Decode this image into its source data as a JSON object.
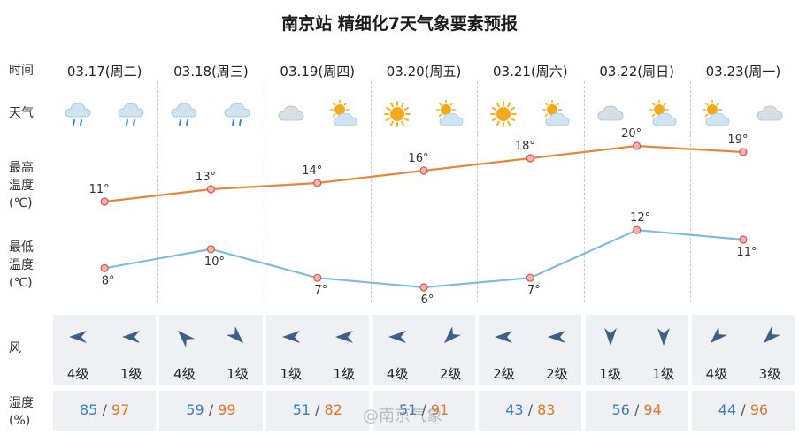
{
  "title": "南京站 精细化7天气象要素预报",
  "row_labels": {
    "time": "时间",
    "weather": "天气",
    "max_temp": [
      "最高",
      "温度",
      "(℃)"
    ],
    "min_temp": [
      "最低",
      "温度",
      "(℃)"
    ],
    "wind": "风",
    "humidity": [
      "湿度",
      "(%)"
    ]
  },
  "days": [
    {
      "date": "03.17(周二)",
      "weather": [
        "light-rain-icon",
        "light-rain-icon"
      ],
      "wind_dir": [
        "west",
        "west"
      ],
      "wind_level": [
        "4级",
        "1级"
      ],
      "humidity_low": "85",
      "humidity_high": "97"
    },
    {
      "date": "03.18(周三)",
      "weather": [
        "light-rain-icon",
        "light-rain-icon"
      ],
      "wind_dir": [
        "north-west",
        "south-east"
      ],
      "wind_level": [
        "4级",
        "1级"
      ],
      "humidity_low": "59",
      "humidity_high": "99"
    },
    {
      "date": "03.19(周四)",
      "weather": [
        "cloudy-icon",
        "partly-cloudy-icon"
      ],
      "wind_dir": [
        "west",
        "west"
      ],
      "wind_level": [
        "1级",
        "1级"
      ],
      "humidity_low": "51",
      "humidity_high": "82"
    },
    {
      "date": "03.20(周五)",
      "weather": [
        "sunny-icon",
        "partly-cloudy-icon"
      ],
      "wind_dir": [
        "west",
        "south-west"
      ],
      "wind_level": [
        "4级",
        "2级"
      ],
      "humidity_low": "51",
      "humidity_high": "91"
    },
    {
      "date": "03.21(周六)",
      "weather": [
        "sunny-icon",
        "partly-cloudy-icon"
      ],
      "wind_dir": [
        "west",
        "west"
      ],
      "wind_level": [
        "2级",
        "2级"
      ],
      "humidity_low": "43",
      "humidity_high": "83"
    },
    {
      "date": "03.22(周日)",
      "weather": [
        "cloudy-icon",
        "partly-cloudy-icon"
      ],
      "wind_dir": [
        "south",
        "south"
      ],
      "wind_level": [
        "1级",
        "1级"
      ],
      "humidity_low": "56",
      "humidity_high": "94"
    },
    {
      "date": "03.23(周一)",
      "weather": [
        "partly-cloudy-icon",
        "cloudy-icon"
      ],
      "wind_dir": [
        "south-west",
        "south-west"
      ],
      "wind_level": [
        "4级",
        "3级"
      ],
      "humidity_low": "44",
      "humidity_high": "96"
    }
  ],
  "humidity_separator": "/",
  "watermark": "@南京气象",
  "colors": {
    "max_line": "#e8873a",
    "min_line": "#7fbde0",
    "humidity_low": "#3a7fc2",
    "humidity_high": "#e0772c",
    "band": "#eef0f4"
  },
  "chart_data": {
    "type": "line",
    "title": "南京站 精细化7天气象要素预报",
    "categories": [
      "03.17(周二)",
      "03.18(周三)",
      "03.19(周四)",
      "03.20(周五)",
      "03.21(周六)",
      "03.22(周日)",
      "03.23(周一)"
    ],
    "series": [
      {
        "name": "最高温度(℃)",
        "values": [
          11,
          13,
          14,
          16,
          18,
          20,
          19
        ],
        "labels": [
          "11°",
          "13°",
          "14°",
          "16°",
          "18°",
          "20°",
          "19°"
        ]
      },
      {
        "name": "最低温度(℃)",
        "values": [
          8,
          10,
          7,
          6,
          7,
          12,
          11
        ],
        "labels": [
          "8°",
          "10°",
          "7°",
          "6°",
          "7°",
          "12°",
          "11°"
        ]
      }
    ],
    "grid": false
  }
}
